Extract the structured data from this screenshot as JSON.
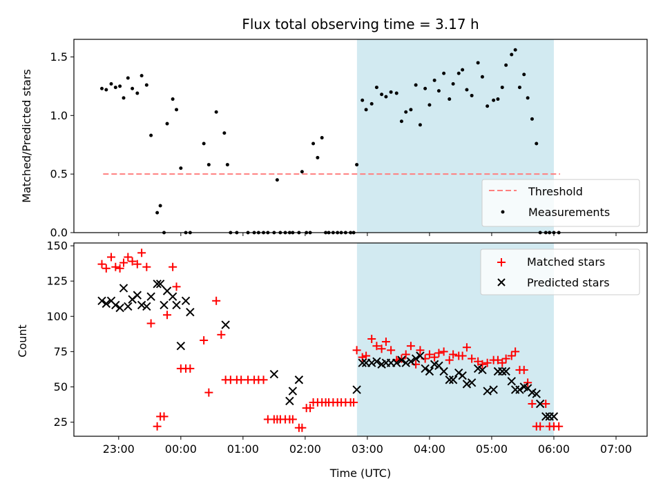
{
  "chart_data": [
    {
      "type": "scatter",
      "title": "Flux total observing time = 3.17 h",
      "ylabel": "Matched/Predicted stars",
      "xlabel": "",
      "xlim": [
        -0.72,
        8.5
      ],
      "ylim": [
        0,
        1.65
      ],
      "yticks": [
        0.0,
        0.5,
        1.0,
        1.5
      ],
      "ytick_labels": [
        "0.0",
        "0.5",
        "1.0",
        "1.5"
      ],
      "grid": false,
      "legend_position": "lower-right",
      "shaded_span": {
        "x0": 3.833,
        "x1": 7.0,
        "color": "#add8e6"
      },
      "threshold": {
        "name": "Threshold",
        "y": 0.5,
        "x0": -0.25,
        "x1": 7.1,
        "color": "#ff7f7f",
        "style": "dashed"
      },
      "series": [
        {
          "name": "Measurements",
          "color": "#000000",
          "marker": "dot",
          "x": [
            -0.27,
            -0.2,
            -0.12,
            -0.05,
            0.02,
            0.08,
            0.15,
            0.22,
            0.3,
            0.37,
            0.45,
            0.52,
            0.62,
            0.67,
            0.73,
            0.78,
            0.87,
            0.93,
            1.0,
            1.08,
            1.15,
            1.37,
            1.45,
            1.57,
            1.7,
            1.75,
            1.8,
            1.9,
            2.08,
            2.18,
            2.25,
            2.33,
            2.4,
            2.5,
            2.55,
            2.6,
            2.68,
            2.75,
            2.8,
            2.9,
            2.95,
            3.02,
            3.08,
            3.13,
            3.2,
            3.27,
            3.33,
            3.38,
            3.45,
            3.52,
            3.58,
            3.65,
            3.73,
            3.78,
            3.83,
            3.92,
            3.98,
            4.07,
            4.15,
            4.23,
            4.3,
            4.38,
            4.47,
            4.55,
            4.62,
            4.7,
            4.78,
            4.85,
            4.93,
            5.0,
            5.08,
            5.15,
            5.23,
            5.32,
            5.38,
            5.47,
            5.53,
            5.6,
            5.68,
            5.78,
            5.85,
            5.93,
            6.03,
            6.1,
            6.17,
            6.23,
            6.32,
            6.38,
            6.45,
            6.52,
            6.58,
            6.65,
            6.72,
            6.78,
            6.87,
            6.93,
            7.0,
            7.08
          ],
          "y": [
            1.23,
            1.22,
            1.27,
            1.24,
            1.25,
            1.15,
            1.32,
            1.23,
            1.19,
            1.34,
            1.26,
            0.83,
            0.17,
            0.23,
            0.0,
            0.93,
            1.14,
            1.05,
            0.55,
            0.0,
            0.0,
            0.76,
            0.58,
            1.03,
            0.85,
            0.58,
            0.0,
            0.0,
            0.0,
            0.0,
            0.0,
            0.0,
            0.0,
            0.0,
            0.45,
            0.0,
            0.0,
            0.0,
            0.0,
            0.0,
            0.52,
            0.0,
            0.0,
            0.76,
            0.64,
            0.81,
            0.0,
            0.0,
            0.0,
            0.0,
            0.0,
            0.0,
            0.0,
            0.0,
            0.58,
            1.13,
            1.05,
            1.1,
            1.24,
            1.18,
            1.16,
            1.2,
            1.19,
            0.95,
            1.03,
            1.05,
            1.26,
            0.92,
            1.23,
            1.09,
            1.3,
            1.21,
            1.36,
            1.14,
            1.27,
            1.36,
            1.39,
            1.22,
            1.17,
            1.45,
            1.33,
            1.08,
            1.13,
            1.14,
            1.24,
            1.43,
            1.52,
            1.56,
            1.24,
            1.35,
            1.15,
            0.97,
            0.76,
            0.0,
            0.0,
            0.0,
            0.0,
            0.0
          ]
        }
      ]
    },
    {
      "type": "scatter",
      "title": "",
      "xlabel": "Time (UTC)",
      "ylabel": "Count",
      "xlim": [
        -0.72,
        8.5
      ],
      "ylim": [
        15,
        152
      ],
      "xticks": [
        0,
        1,
        2,
        3,
        4,
        5,
        6,
        7,
        8
      ],
      "xtick_labels": [
        "23:00",
        "00:00",
        "01:00",
        "02:00",
        "03:00",
        "04:00",
        "05:00",
        "06:00",
        "07:00"
      ],
      "yticks": [
        25,
        50,
        75,
        100,
        125,
        150
      ],
      "ytick_labels": [
        "25",
        "50",
        "75",
        "100",
        "125",
        "150"
      ],
      "grid": false,
      "legend_position": "upper-right",
      "shaded_span": {
        "x0": 3.833,
        "x1": 7.0,
        "color": "#add8e6"
      },
      "series": [
        {
          "name": "Matched stars",
          "color": "#ff0000",
          "marker": "plus",
          "x": [
            -0.27,
            -0.2,
            -0.12,
            -0.05,
            0.02,
            0.08,
            0.15,
            0.22,
            0.3,
            0.37,
            0.45,
            0.52,
            0.62,
            0.67,
            0.73,
            0.78,
            0.87,
            0.93,
            1.0,
            1.08,
            1.15,
            1.37,
            1.45,
            1.57,
            1.65,
            1.72,
            1.8,
            1.9,
            1.97,
            2.08,
            2.18,
            2.25,
            2.33,
            2.4,
            2.5,
            2.55,
            2.6,
            2.68,
            2.75,
            2.8,
            2.9,
            2.95,
            3.02,
            3.08,
            3.13,
            3.2,
            3.27,
            3.33,
            3.38,
            3.45,
            3.52,
            3.58,
            3.65,
            3.73,
            3.78,
            3.83,
            3.92,
            3.98,
            4.07,
            4.15,
            4.23,
            4.3,
            4.38,
            4.47,
            4.55,
            4.62,
            4.7,
            4.78,
            4.85,
            4.93,
            5.0,
            5.08,
            5.15,
            5.23,
            5.32,
            5.38,
            5.47,
            5.53,
            5.6,
            5.68,
            5.78,
            5.85,
            5.93,
            6.03,
            6.1,
            6.17,
            6.23,
            6.32,
            6.38,
            6.45,
            6.52,
            6.58,
            6.65,
            6.72,
            6.78,
            6.87,
            6.93,
            7.0,
            7.08
          ],
          "y": [
            137,
            134,
            142,
            135,
            134,
            138,
            142,
            139,
            137,
            145,
            135,
            95,
            22,
            29,
            29,
            101,
            135,
            121,
            63,
            63,
            63,
            83,
            46,
            111,
            87,
            55,
            55,
            55,
            55,
            55,
            55,
            55,
            55,
            27,
            27,
            27,
            27,
            27,
            27,
            27,
            21,
            21,
            35,
            35,
            39,
            39,
            39,
            39,
            39,
            39,
            39,
            39,
            39,
            39,
            39,
            76,
            71,
            72,
            84,
            79,
            77,
            82,
            76,
            69,
            70,
            73,
            79,
            66,
            76,
            70,
            73,
            71,
            74,
            75,
            69,
            73,
            72,
            72,
            78,
            70,
            68,
            66,
            67,
            69,
            69,
            67,
            70,
            72,
            75,
            62,
            62,
            53,
            38,
            22,
            22,
            38,
            22,
            22,
            22
          ],
          "note_unused": ""
        },
        {
          "name": "Predicted stars",
          "color": "#000000",
          "marker": "x",
          "x": [
            -0.27,
            -0.2,
            -0.12,
            -0.05,
            0.02,
            0.08,
            0.15,
            0.22,
            0.3,
            0.37,
            0.45,
            0.52,
            0.62,
            0.67,
            0.73,
            0.78,
            0.87,
            0.93,
            1.0,
            1.08,
            1.15,
            1.72,
            2.5,
            2.75,
            2.8,
            2.9,
            3.83,
            3.92,
            3.98,
            4.07,
            4.15,
            4.23,
            4.3,
            4.38,
            4.47,
            4.55,
            4.62,
            4.7,
            4.78,
            4.85,
            4.93,
            5.0,
            5.08,
            5.15,
            5.23,
            5.32,
            5.38,
            5.47,
            5.53,
            5.6,
            5.68,
            5.78,
            5.85,
            5.93,
            6.03,
            6.1,
            6.17,
            6.23,
            6.32,
            6.38,
            6.45,
            6.52,
            6.58,
            6.65,
            6.72,
            6.78,
            6.87,
            6.93,
            7.0
          ],
          "y": [
            111,
            109,
            111,
            108,
            106,
            120,
            107,
            112,
            115,
            108,
            107,
            114,
            123,
            123,
            108,
            118,
            114,
            108,
            79,
            111,
            103,
            94,
            59,
            40,
            47,
            55,
            48,
            67,
            67,
            67,
            68,
            66,
            67,
            67,
            67,
            69,
            67,
            68,
            70,
            72,
            63,
            61,
            66,
            65,
            61,
            55,
            55,
            60,
            58,
            52,
            53,
            63,
            62,
            47,
            48,
            61,
            61,
            61,
            54,
            48,
            48,
            50,
            49,
            46,
            45,
            38,
            29,
            29,
            29
          ],
          "note_unused": ""
        }
      ]
    }
  ]
}
